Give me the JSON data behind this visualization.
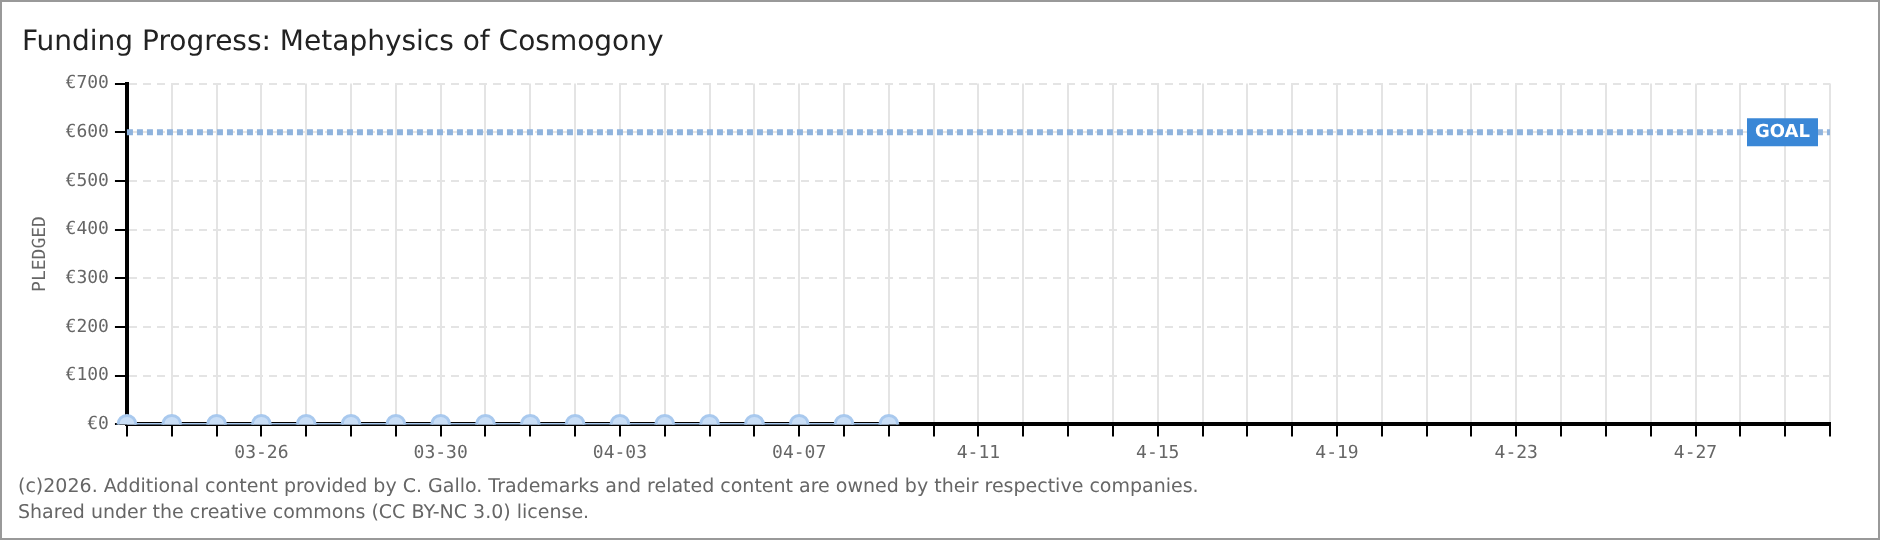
{
  "chart_data": {
    "type": "line",
    "title": "Funding Progress: Metaphysics of Cosmogony",
    "ylabel": "PLEDGED",
    "categories": [
      null,
      null,
      null,
      "03-26",
      null,
      null,
      null,
      "03-30",
      null,
      null,
      null,
      "04-03",
      null,
      null,
      null,
      "04-07",
      null,
      null,
      null,
      "4-11",
      null,
      null,
      null,
      "4-15",
      null,
      null,
      null,
      "4-19",
      null,
      null,
      null,
      "4-23",
      null,
      null,
      null,
      "4-27",
      null,
      null,
      null
    ],
    "series": [
      {
        "color": "#a9c9ee",
        "values": [
          0,
          0,
          0,
          0,
          0,
          0,
          0,
          0,
          0,
          0,
          0,
          0,
          0,
          0,
          0,
          0,
          0,
          0,
          null,
          null,
          null,
          null,
          null,
          null,
          null,
          null,
          null,
          null,
          null,
          null,
          null,
          null,
          null,
          null,
          null,
          null,
          null,
          null,
          null
        ]
      }
    ],
    "ylim": [
      0,
      700
    ],
    "yticks": [
      {
        "value": 0,
        "label": "€0"
      },
      {
        "value": 100,
        "label": "€100"
      },
      {
        "value": 200,
        "label": "€200"
      },
      {
        "value": 300,
        "label": "€300"
      },
      {
        "value": 400,
        "label": "€400"
      },
      {
        "value": 500,
        "label": "€500"
      },
      {
        "value": 600,
        "label": "€600"
      },
      {
        "value": 700,
        "label": "€700"
      }
    ],
    "ref_lines": [
      {
        "axis": "y",
        "value": 600,
        "label": "GOAL",
        "color": "#8fb3dd",
        "line_style": "dotted"
      }
    ],
    "grid": true,
    "legend": false,
    "marker": "circle",
    "line_style": "solid",
    "annotations": [
      "(c)2026. Additional content provided by C. Gallo. Trademarks and related content are owned by their respective companies.",
      "Shared under the creative commons (CC BY-NC 3.0) license."
    ]
  }
}
